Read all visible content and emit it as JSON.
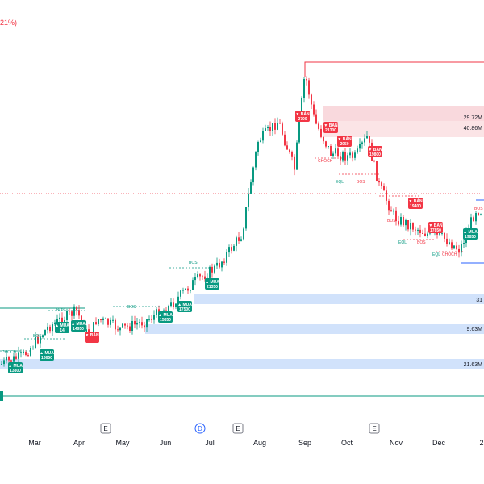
{
  "header": {
    "change_text": "21%)"
  },
  "colors": {
    "up": "#089981",
    "down": "#f23645",
    "zone_blue": "#d1e2fb",
    "zone_red": "#f7c9ce",
    "level_red": "#f23645",
    "level_green": "#089981",
    "level_blue": "#2962ff"
  },
  "chart_data": {
    "type": "candlestick",
    "x_ticks": [
      "Mar",
      "Apr",
      "May",
      "Jun",
      "Jul",
      "Aug",
      "Sep",
      "Oct",
      "Nov",
      "Dec",
      "2"
    ],
    "earnings_markers": [
      "E",
      "D",
      "E",
      "E"
    ],
    "zone_labels": [
      {
        "text": "29.72M",
        "zone": "supply_upper"
      },
      {
        "text": "40.86M",
        "zone": "supply_lower"
      },
      {
        "text": "31",
        "zone": "demand_1"
      },
      {
        "text": "9.63M",
        "zone": "demand_2"
      },
      {
        "text": "21.63M",
        "zone": "demand_3"
      }
    ],
    "structure_labels": [
      "CHOCH",
      "BOS",
      "BOS",
      "BOS",
      "BOS",
      "CHOCH",
      "EQL",
      "BOS",
      "BOS",
      "BOS",
      "EQL",
      "BOS",
      "EQL",
      "CHOCH"
    ],
    "signals": [
      {
        "side": "buy",
        "label": "MUA",
        "value": "13800"
      },
      {
        "side": "buy",
        "label": "MUA",
        "value": "13650"
      },
      {
        "side": "buy",
        "label": "MUA",
        "value": "14"
      },
      {
        "side": "buy",
        "label": "MUA",
        "value": "14950"
      },
      {
        "side": "sell",
        "label": "BÁN",
        "value": ""
      },
      {
        "side": "buy",
        "label": "MUA",
        "value": "15850"
      },
      {
        "side": "buy",
        "label": "MUA",
        "value": "17500"
      },
      {
        "side": "buy",
        "label": "MUA",
        "value": "21350"
      },
      {
        "side": "sell",
        "label": "BÁN",
        "value": "2700"
      },
      {
        "side": "sell",
        "label": "BÁN",
        "value": "21300"
      },
      {
        "side": "sell",
        "label": "BÁN",
        "value": "2050"
      },
      {
        "side": "sell",
        "label": "BÁN",
        "value": "19800"
      },
      {
        "side": "sell",
        "label": "BÁN",
        "value": "19400"
      },
      {
        "side": "sell",
        "label": "BÁN",
        "value": "17850"
      },
      {
        "side": "buy",
        "label": "MUA",
        "value": "19850"
      }
    ]
  }
}
